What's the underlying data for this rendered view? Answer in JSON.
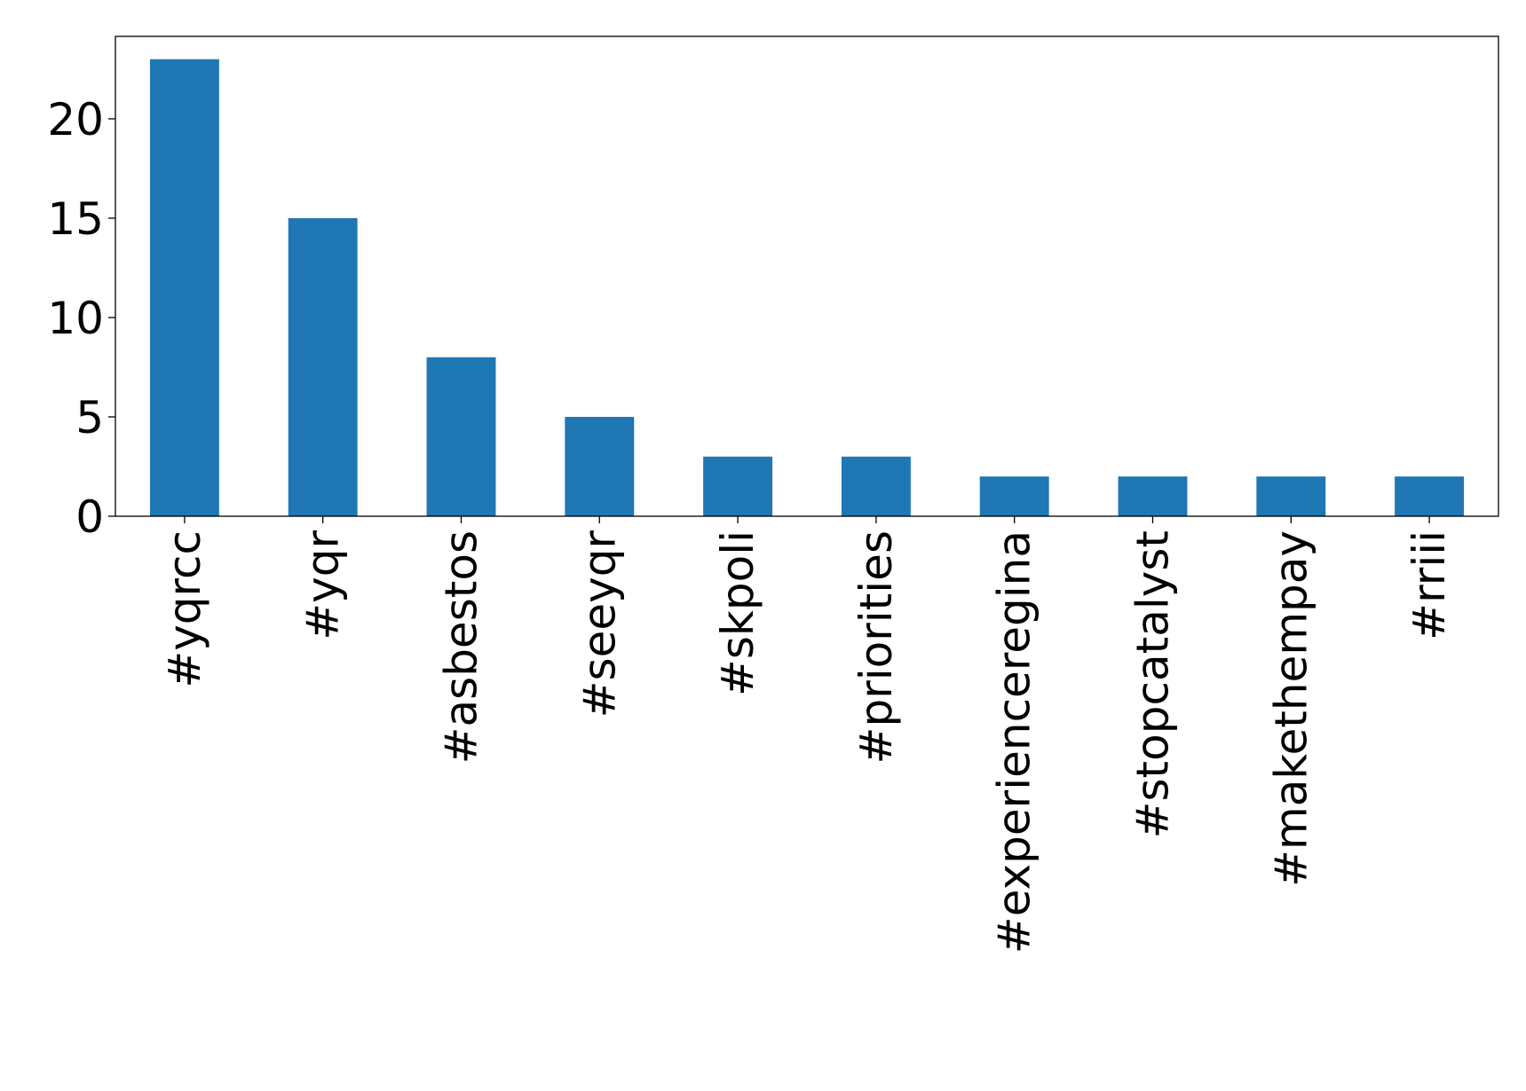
{
  "chart_data": {
    "type": "bar",
    "title": "",
    "xlabel": "",
    "ylabel": "",
    "categories": [
      "#yqrcc",
      "#yqr",
      "#asbestos",
      "#seeyqr",
      "#skpoli",
      "#priorities",
      "#experienceregina",
      "#stopcatalyst",
      "#makethempay",
      "#rriii"
    ],
    "values": [
      23,
      15,
      8,
      5,
      3,
      3,
      2,
      2,
      2,
      2
    ],
    "ylim": [
      0,
      24.15
    ],
    "yticks": [
      0,
      5,
      10,
      15,
      20
    ],
    "grid": false,
    "legend": "none",
    "bar_color": "#1f77b4"
  }
}
